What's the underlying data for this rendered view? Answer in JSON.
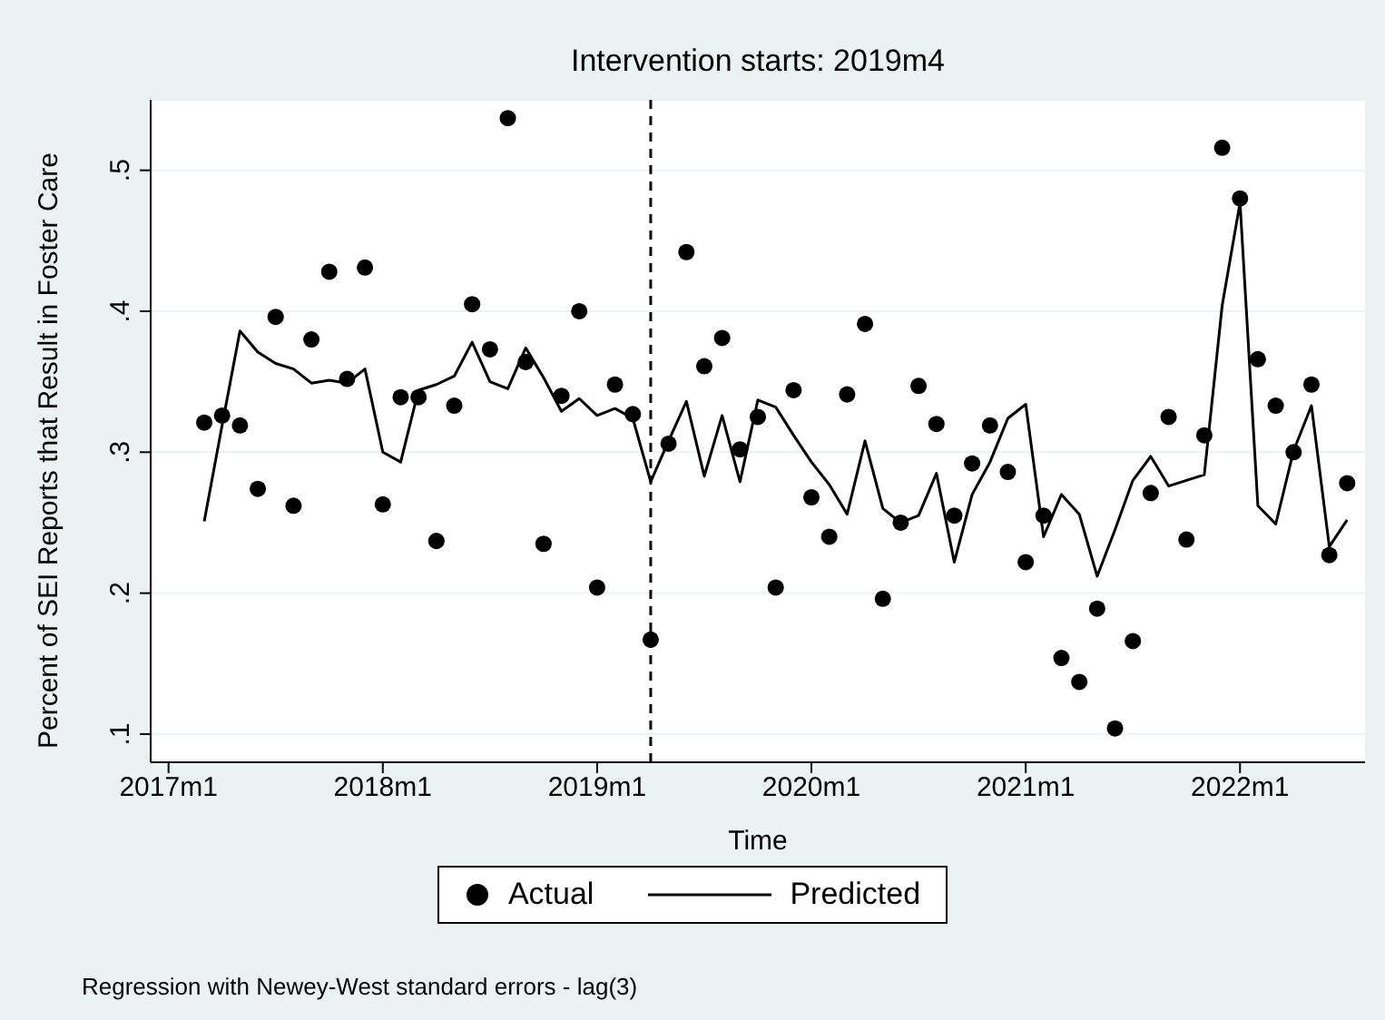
{
  "chart_data": {
    "type": "scatter",
    "title": "Intervention starts: 2019m4",
    "xlabel": "Time",
    "ylabel": "Percent of SEI Reports that Result in Foster Care",
    "x": [
      "2017-03",
      "2017-04",
      "2017-05",
      "2017-06",
      "2017-07",
      "2017-08",
      "2017-09",
      "2017-10",
      "2017-11",
      "2017-12",
      "2018-01",
      "2018-02",
      "2018-03",
      "2018-04",
      "2018-05",
      "2018-06",
      "2018-07",
      "2018-08",
      "2018-09",
      "2018-10",
      "2018-11",
      "2018-12",
      "2019-01",
      "2019-02",
      "2019-03",
      "2019-04",
      "2019-05",
      "2019-06",
      "2019-07",
      "2019-08",
      "2019-09",
      "2019-10",
      "2019-11",
      "2019-12",
      "2020-01",
      "2020-02",
      "2020-03",
      "2020-04",
      "2020-05",
      "2020-06",
      "2020-07",
      "2020-08",
      "2020-09",
      "2020-10",
      "2020-11",
      "2020-12",
      "2021-01",
      "2021-02",
      "2021-03",
      "2021-04",
      "2021-05",
      "2021-06",
      "2021-07",
      "2021-08",
      "2021-09",
      "2021-10",
      "2021-11",
      "2021-12",
      "2022-01",
      "2022-02",
      "2022-03",
      "2022-04",
      "2022-05",
      "2022-06",
      "2022-07"
    ],
    "series": [
      {
        "name": "Actual",
        "marker": "circle",
        "color": "#000000",
        "values": [
          0.321,
          0.326,
          0.319,
          0.274,
          0.396,
          0.262,
          0.38,
          0.428,
          0.352,
          0.431,
          0.263,
          0.339,
          0.339,
          0.237,
          0.333,
          0.405,
          0.373,
          0.537,
          0.364,
          0.235,
          0.34,
          0.4,
          0.204,
          0.348,
          0.327,
          0.167,
          0.306,
          0.442,
          0.361,
          0.381,
          0.302,
          0.325,
          0.204,
          0.344,
          0.268,
          0.24,
          0.341,
          0.391,
          0.196,
          0.25,
          0.347,
          0.32,
          0.255,
          0.292,
          0.319,
          0.286,
          0.222,
          0.255,
          0.154,
          0.137,
          0.189,
          0.104,
          0.166,
          0.271,
          0.325,
          0.238,
          0.312,
          0.516,
          0.48,
          0.366,
          0.333,
          0.3,
          0.348,
          0.227,
          0.278
        ]
      },
      {
        "name": "Predicted",
        "type": "line",
        "marker": "none",
        "line_style": "solid",
        "color": "#000000",
        "values": [
          0.251,
          0.319,
          0.386,
          0.371,
          0.363,
          0.359,
          0.349,
          0.351,
          0.349,
          0.359,
          0.3,
          0.293,
          0.344,
          0.348,
          0.354,
          0.378,
          0.35,
          0.345,
          0.374,
          0.353,
          0.329,
          0.338,
          0.326,
          0.331,
          0.324,
          0.279,
          0.308,
          0.336,
          0.283,
          0.326,
          0.279,
          0.337,
          0.332,
          0.312,
          0.293,
          0.277,
          0.256,
          0.308,
          0.26,
          0.25,
          0.255,
          0.285,
          0.222,
          0.27,
          0.293,
          0.324,
          0.334,
          0.24,
          0.27,
          0.256,
          0.212,
          0.245,
          0.28,
          0.297,
          0.276,
          0.28,
          0.284,
          0.404,
          0.477,
          0.262,
          0.249,
          0.301,
          0.333,
          0.233,
          0.252
        ]
      }
    ],
    "xlim": [
      "2016-12",
      "2022-08"
    ],
    "xticks": [
      {
        "value": "2017-01",
        "label": "2017m1"
      },
      {
        "value": "2018-01",
        "label": "2018m1"
      },
      {
        "value": "2019-01",
        "label": "2019m1"
      },
      {
        "value": "2020-01",
        "label": "2020m1"
      },
      {
        "value": "2021-01",
        "label": "2021m1"
      },
      {
        "value": "2022-01",
        "label": "2022m1"
      }
    ],
    "ylim": [
      0.08,
      0.55
    ],
    "yticks": [
      {
        "value": 0.1,
        "label": ".1"
      },
      {
        "value": 0.2,
        "label": ".2"
      },
      {
        "value": 0.3,
        "label": ".3"
      },
      {
        "value": 0.4,
        "label": ".4"
      },
      {
        "value": 0.5,
        "label": ".5"
      }
    ],
    "ref_lines": [
      {
        "axis": "x",
        "value": "2019-04",
        "line_style": "dashed",
        "color": "#000000"
      }
    ],
    "grid": "y",
    "legend": "bottom",
    "annotations": [
      "Regression with Newey-West standard errors - lag(3)"
    ]
  }
}
